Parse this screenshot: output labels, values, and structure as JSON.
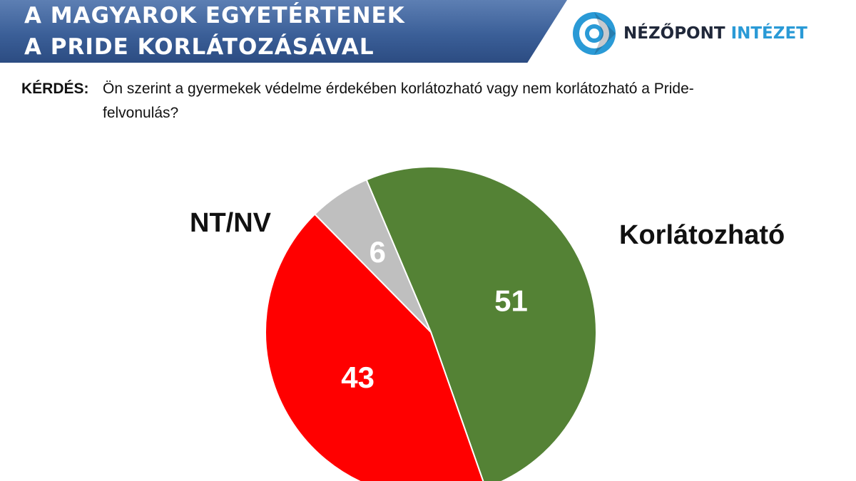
{
  "header": {
    "title_line1": "A MAGYAROK EGYETÉRTENEK",
    "title_line2": "A PRIDE KORLÁTOZÁSÁVAL"
  },
  "logo": {
    "name": "NÉZŐPONT",
    "sub": "INTÉZET",
    "icon": "nezopont-logo-icon"
  },
  "question": {
    "label": "KÉRDÉS:",
    "text": "Ön szerint a gyermekek védelme érdekében korlátozható vagy nem korlátozható a Pride-felvonulás?"
  },
  "chart_data": {
    "type": "pie",
    "categories": [
      "Korlátozható",
      "",
      "NT/NV"
    ],
    "values": [
      51,
      43,
      6
    ],
    "colors": [
      "#548235",
      "#ff0000",
      "#bfbfbf"
    ],
    "start": "top, clockwise",
    "legend": "labels beside slices"
  }
}
